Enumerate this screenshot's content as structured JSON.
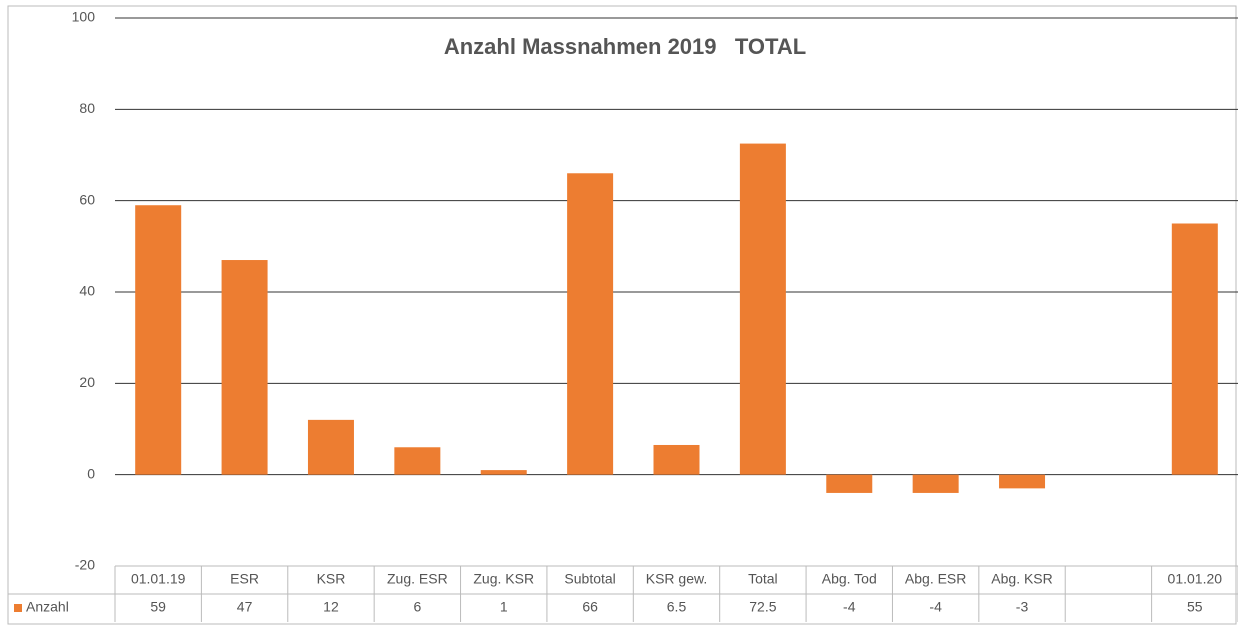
{
  "chart_data": {
    "type": "bar",
    "title": "Anzahl Massnahmen 2019   TOTAL",
    "categories": [
      "01.01.19",
      "ESR",
      "KSR",
      "Zug. ESR",
      "Zug. KSR",
      "Subtotal",
      "KSR gew.",
      "Total",
      "Abg. Tod",
      "Abg. ESR",
      "Abg. KSR",
      null,
      "01.01.20"
    ],
    "series": [
      {
        "name": "Anzahl",
        "color": "#ed7d31",
        "values": [
          59,
          47,
          12,
          6,
          1,
          66,
          6.5,
          72.5,
          -4,
          -4,
          -3,
          null,
          55
        ]
      }
    ],
    "ylim": [
      -20,
      100
    ],
    "yticks": [
      -20,
      0,
      20,
      40,
      60,
      80,
      100
    ],
    "grid": true,
    "data_table": true
  }
}
